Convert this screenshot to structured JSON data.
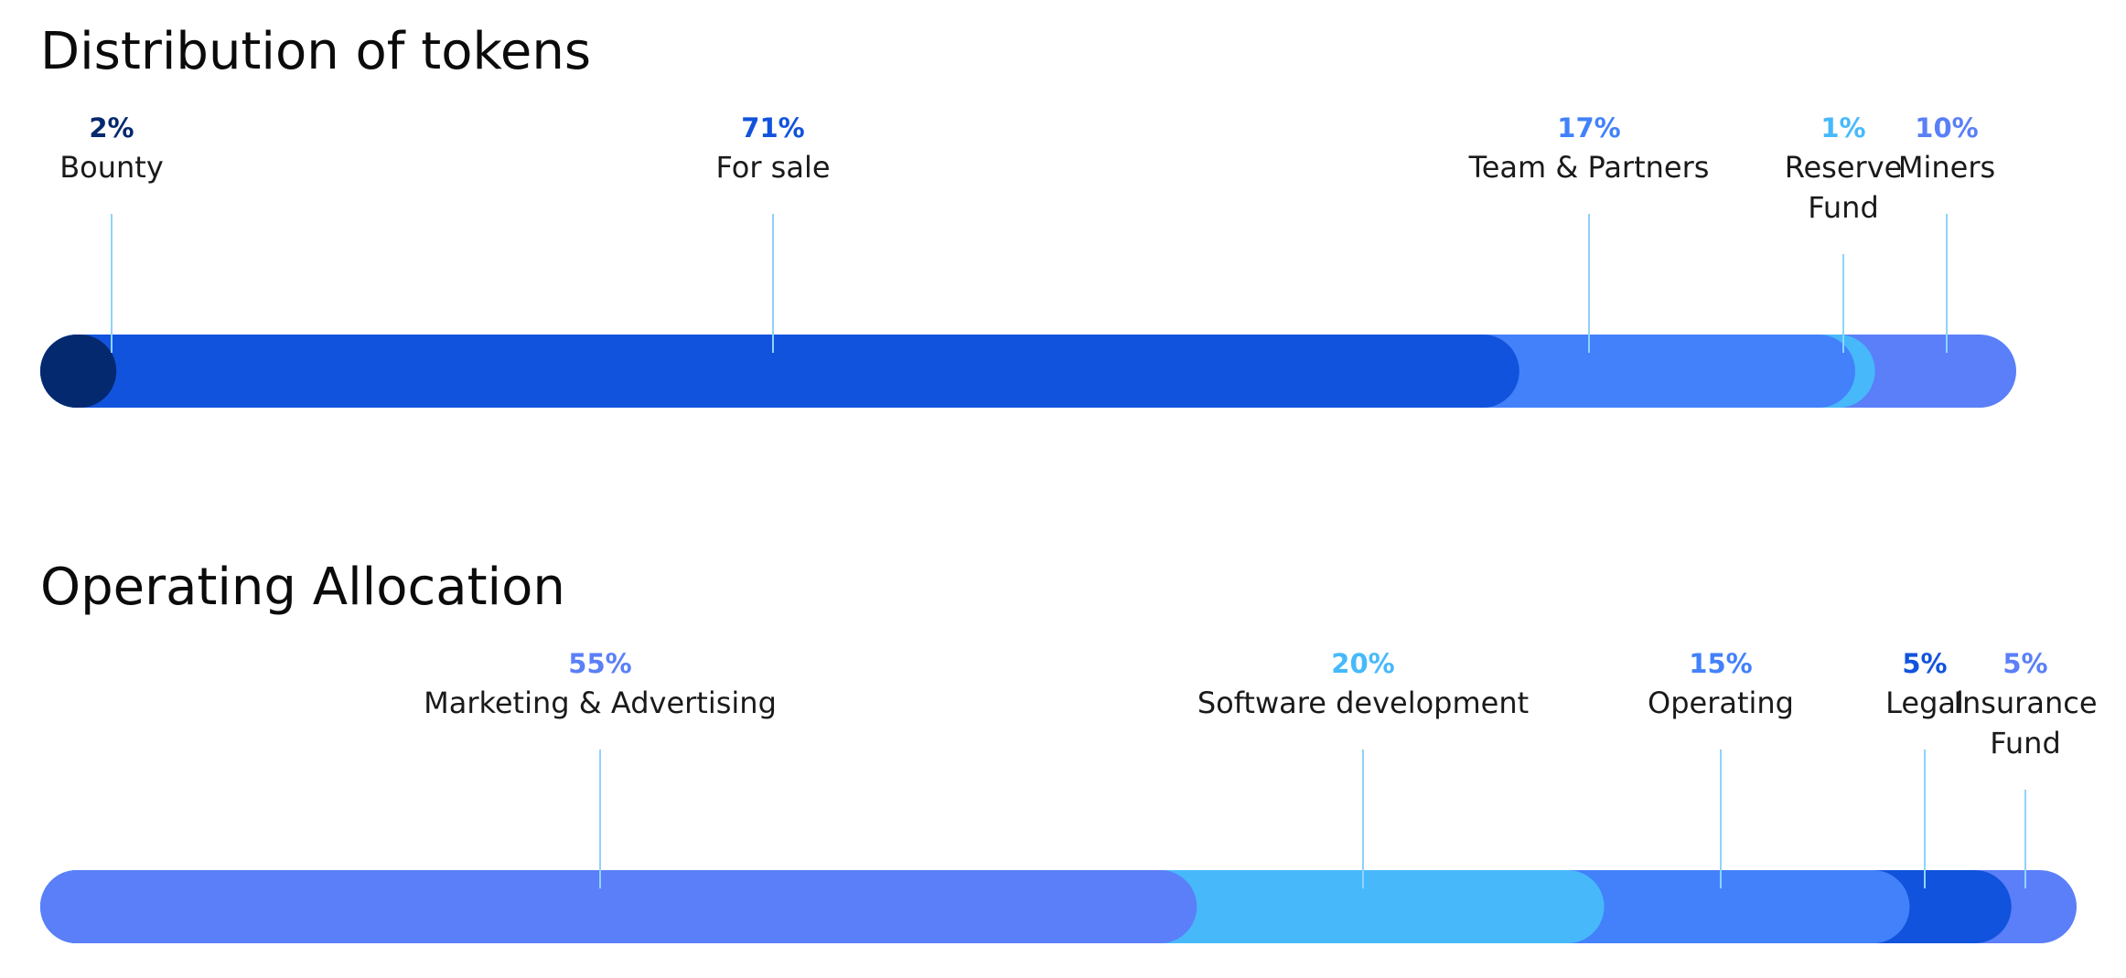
{
  "chart_data": [
    {
      "type": "bar",
      "orientation": "horizontal-stacked",
      "title": "Distribution of tokens",
      "categories": [
        "Bounty",
        "For sale",
        "Team & Partners",
        "Reserve Fund",
        "Miners"
      ],
      "values": [
        2,
        71,
        17,
        1,
        10
      ],
      "value_labels": [
        "2%",
        "71%",
        "17%",
        "1%",
        "10%"
      ],
      "label_lines": [
        [
          "Bounty"
        ],
        [
          "For sale"
        ],
        [
          "Team & Partners"
        ],
        [
          "Reserve",
          "Fund"
        ],
        [
          "Miners"
        ]
      ],
      "colors": [
        "#05296e",
        "#1153dc",
        "#4381fb",
        "#47b9fb",
        "#5a7ff8"
      ],
      "total": 100
    },
    {
      "type": "bar",
      "orientation": "horizontal-stacked",
      "title": "Operating Allocation",
      "categories": [
        "Marketing & Advertising",
        "Software development",
        "Operating",
        "Legal",
        "Insurance Fund"
      ],
      "values": [
        55,
        20,
        15,
        5,
        5
      ],
      "value_labels": [
        "55%",
        "20%",
        "15%",
        "5%",
        "5%"
      ],
      "label_lines": [
        [
          "Marketing & Advertising"
        ],
        [
          "Software development"
        ],
        [
          "Operating"
        ],
        [
          "Legal"
        ],
        [
          "Insurance",
          "Fund"
        ]
      ],
      "colors": [
        "#5a7ff8",
        "#47b9fb",
        "#4381fb",
        "#1153dc",
        "#5a7ff8"
      ],
      "total": 100
    }
  ]
}
